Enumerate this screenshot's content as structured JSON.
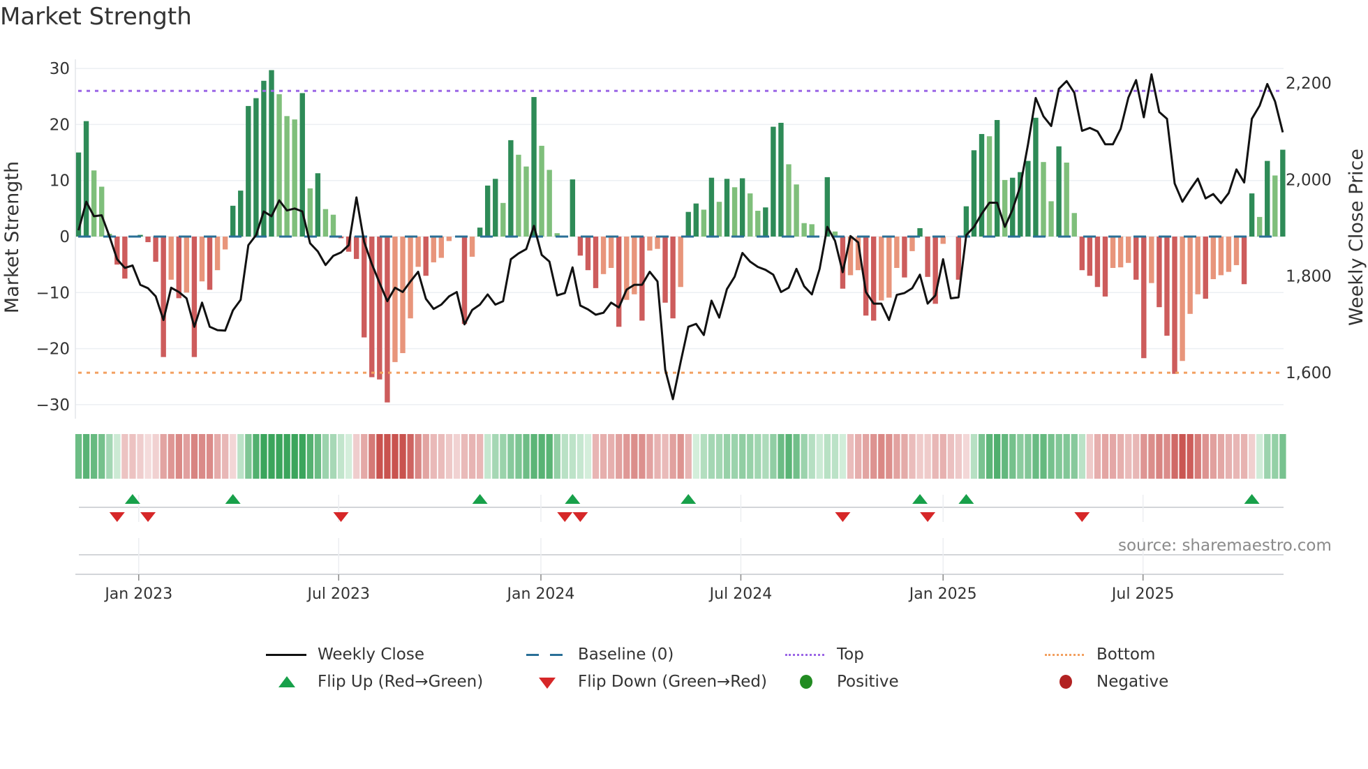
{
  "title": "Market Strength",
  "source": "source: sharemaestro.com",
  "colors": {
    "strong_green": "#2e8b57",
    "weak_green": "#7fbf7b",
    "strong_red": "#cd5c5c",
    "weak_red": "#e8957b",
    "top": "#9b66e6",
    "bottom": "#f2a060",
    "baseline": "#2a6f97",
    "close": "#111111",
    "flip_up": "#18a04a",
    "flip_down": "#d62728",
    "positive": "#228b22",
    "negative": "#b22222"
  },
  "legend": {
    "weekly_close": "Weekly Close",
    "baseline": "Baseline (0)",
    "top": "Top",
    "bottom": "Bottom",
    "flip_up": "Flip Up (Red→Green)",
    "flip_down": "Flip Down (Green→Red)",
    "positive": "Positive",
    "negative": "Negative"
  },
  "chart_data": {
    "type": "bar",
    "title": "Market Strength",
    "ylabel": "Market Strength",
    "y2label": "Weekly Close Price",
    "ylim": [
      -32,
      32
    ],
    "y2lim": [
      1520,
      2250
    ],
    "yticks": [
      30,
      20,
      10,
      0,
      -10,
      -20,
      -30
    ],
    "ytick_labels": [
      "30",
      "20",
      "10",
      "0",
      "−10",
      "−20",
      "−30"
    ],
    "y2ticks": [
      2200,
      2000,
      1800,
      1600
    ],
    "y2tick_labels": [
      "2,200",
      "2,000",
      "1,800",
      "1,600"
    ],
    "top_level": 26,
    "bottom_level": -24.3,
    "baseline": 0,
    "x_ticks": [
      {
        "label": "Jan 2023",
        "x": 7.8
      },
      {
        "label": "Jul 2023",
        "x": 33.7
      },
      {
        "label": "Jan 2024",
        "x": 59.9
      },
      {
        "label": "Jul 2024",
        "x": 85.8
      },
      {
        "label": "Jan 2025",
        "x": 112.0
      },
      {
        "label": "Jul 2025",
        "x": 137.9
      }
    ],
    "strength": [
      15,
      20.6,
      11.8,
      8.9,
      0.5,
      -5,
      -7.5,
      0,
      0.3,
      -1,
      -4.5,
      -21.5,
      -7.7,
      -11,
      -10,
      -21.5,
      -8,
      -9.5,
      -6,
      -2.3,
      5.5,
      8.2,
      23.3,
      24.7,
      27.8,
      29.7,
      25.4,
      21.5,
      20.9,
      25.6,
      8.6,
      11.3,
      4.9,
      3.9,
      -0.3,
      -2.7,
      -4,
      -18,
      -25.1,
      -25.5,
      -29.6,
      -22.4,
      -20.8,
      -14.6,
      -5.4,
      -7,
      -4.6,
      -3.8,
      -0.8,
      0,
      -15.6,
      -3.6,
      1.6,
      9.1,
      10.3,
      6,
      17.2,
      14.6,
      12.5,
      24.9,
      16.2,
      11.9,
      0.6,
      0,
      10.2,
      -3.4,
      -6,
      -9.2,
      -6.7,
      -5.6,
      -16.1,
      -11.3,
      -10.3,
      -15,
      -2.5,
      -2.2,
      -11.8,
      -14.6,
      -9,
      4.4,
      5.9,
      4.8,
      10.5,
      6.2,
      10.3,
      8.8,
      10.4,
      7.7,
      4.6,
      5.2,
      19.6,
      20.3,
      12.9,
      9.3,
      2.4,
      2.2,
      0,
      10.6,
      0.9,
      -9.3,
      -6.9,
      -6,
      -14.1,
      -15,
      -11.4,
      -10.9,
      -5.6,
      -7.3,
      -2.6,
      1.5,
      -7.2,
      -12,
      -1.3,
      0,
      -7.7,
      5.4,
      15.4,
      18.3,
      17.9,
      20.8,
      10.1,
      10.5,
      11.5,
      13.5,
      21.2,
      13.3,
      6.3,
      16.1,
      13.2,
      4.2,
      -6,
      -7,
      -9,
      -10.7,
      -5.6,
      -5.5,
      -4.7,
      -7.7,
      -21.7,
      -8.3,
      -12.6,
      -17.7,
      -24.5,
      -22.2,
      -13.8,
      -10.3,
      -11.1,
      -7.6,
      -6.9,
      -6.3,
      -5.1,
      -8.5,
      7.7,
      3.5,
      13.5,
      10.9,
      15.5
    ],
    "weekly_close": [
      1895,
      1954,
      1924,
      1926,
      1883,
      1835,
      1817,
      1822,
      1782,
      1775,
      1758,
      1709,
      1776,
      1767,
      1754,
      1695,
      1745,
      1695,
      1688,
      1687,
      1729,
      1751,
      1864,
      1885,
      1934,
      1924,
      1957,
      1936,
      1940,
      1934,
      1868,
      1851,
      1823,
      1842,
      1849,
      1864,
      1963,
      1871,
      1825,
      1786,
      1748,
      1776,
      1767,
      1789,
      1809,
      1753,
      1732,
      1741,
      1758,
      1767,
      1700,
      1730,
      1741,
      1762,
      1741,
      1748,
      1835,
      1847,
      1856,
      1904,
      1844,
      1830,
      1760,
      1765,
      1818,
      1739,
      1731,
      1720,
      1724,
      1745,
      1735,
      1772,
      1782,
      1782,
      1809,
      1789,
      1606,
      1545,
      1622,
      1695,
      1701,
      1678,
      1749,
      1714,
      1773,
      1799,
      1848,
      1830,
      1819,
      1813,
      1803,
      1767,
      1776,
      1815,
      1779,
      1762,
      1815,
      1902,
      1873,
      1808,
      1883,
      1870,
      1767,
      1743,
      1743,
      1709,
      1761,
      1765,
      1775,
      1803,
      1743,
      1760,
      1835,
      1754,
      1756,
      1885,
      1902,
      1929,
      1952,
      1952,
      1902,
      1938,
      1986,
      2073,
      2169,
      2131,
      2111,
      2188,
      2204,
      2180,
      2101,
      2107,
      2100,
      2073,
      2073,
      2105,
      2170,
      2206,
      2129,
      2218,
      2140,
      2126,
      1992,
      1954,
      1979,
      2002,
      1961,
      1970,
      1951,
      1972,
      2021,
      1994,
      2126,
      2153,
      2198,
      2162,
      2098
    ],
    "flip_up": [
      7,
      20,
      52,
      64,
      79,
      109,
      115,
      152
    ],
    "flip_down": [
      5,
      9,
      34,
      63,
      65,
      99,
      110,
      130
    ]
  }
}
